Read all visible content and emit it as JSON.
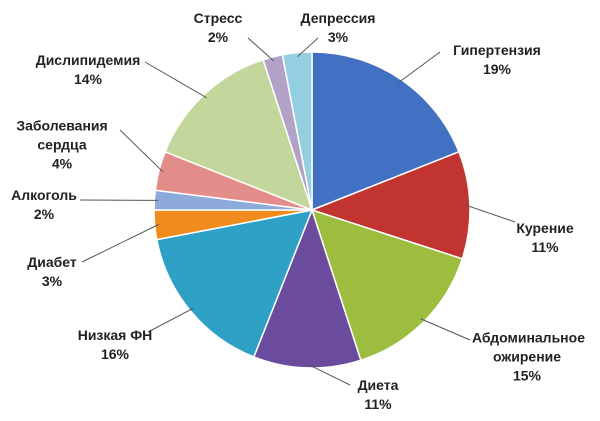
{
  "chart_data": {
    "type": "pie",
    "categories": [
      "Гипертензия",
      "Курение",
      "Абдоминальное ожирение",
      "Диета",
      "Низкая ФН",
      "Диабет",
      "Алкоголь",
      "Заболевания сердца",
      "Дислипидемия",
      "Стресс",
      "Депрессия"
    ],
    "values": [
      19,
      11,
      15,
      11,
      16,
      3,
      2,
      4,
      14,
      2,
      3
    ],
    "value_labels": [
      "19%",
      "11%",
      "15%",
      "11%",
      "16%",
      "3%",
      "2%",
      "4%",
      "14%",
      "2%",
      "3%"
    ],
    "colors": [
      "#4270c2",
      "#c23430",
      "#9cbd3e",
      "#6b4c9c",
      "#2fa0c6",
      "#f08c1e",
      "#8eaadb",
      "#e38d8a",
      "#c3d79c",
      "#b2a2c8",
      "#93cfe0"
    ]
  }
}
